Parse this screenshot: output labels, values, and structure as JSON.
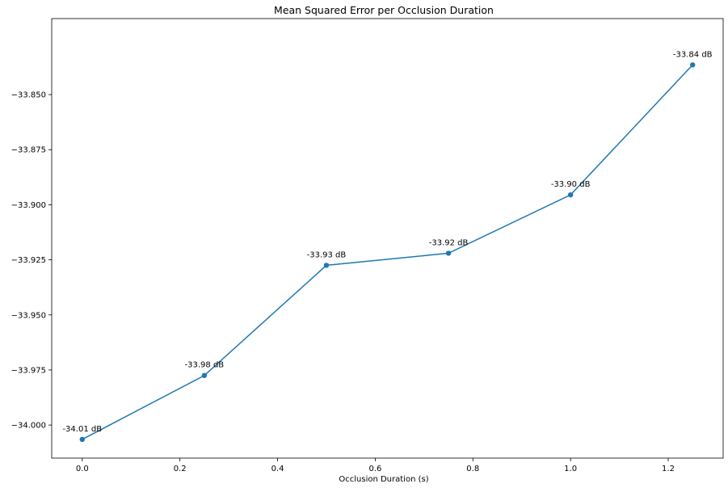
{
  "chart_data": {
    "type": "line",
    "title": "Mean Squared Error per Occlusion Duration",
    "xlabel": "Occlusion Duration (s)",
    "ylabel": "",
    "xlim": [
      -0.0625,
      1.3125
    ],
    "ylim": [
      -34.015,
      -33.8155
    ],
    "xticks": [
      0.0,
      0.2,
      0.4,
      0.6,
      0.8,
      1.0,
      1.2
    ],
    "xtick_labels": [
      "0.0",
      "0.2",
      "0.4",
      "0.6",
      "0.8",
      "1.0",
      "1.2"
    ],
    "yticks": [
      -34.0,
      -33.975,
      -33.95,
      -33.925,
      -33.9,
      -33.875,
      -33.85
    ],
    "ytick_labels": [
      "−34.000",
      "−33.975",
      "−33.950",
      "−33.925",
      "−33.900",
      "−33.875",
      "−33.850"
    ],
    "grid": false,
    "color": "#1f77b4",
    "series": [
      {
        "x": [
          0.0,
          0.25,
          0.5,
          0.75,
          1.0,
          1.25
        ],
        "y": [
          -34.0065,
          -33.9775,
          -33.9275,
          -33.922,
          -33.8955,
          -33.8365
        ],
        "labels": [
          "-34.01 dB",
          "-33.98 dB",
          "-33.93 dB",
          "-33.92 dB",
          "-33.90 dB",
          "-33.84 dB"
        ]
      }
    ]
  }
}
